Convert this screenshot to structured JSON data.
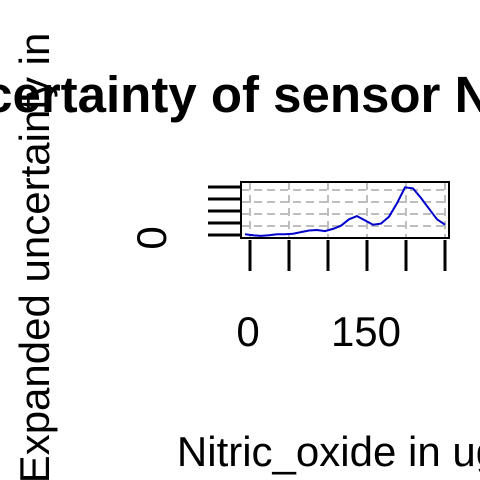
{
  "chart_data": {
    "type": "line",
    "title": "Uncertainty of sensor NOB",
    "xlabel": "Nitric_oxide in ug",
    "ylabel": "Expanded uncertainty in",
    "x_tick_labels": [
      "0",
      "150"
    ],
    "y_tick_labels": [
      "0"
    ],
    "xlim": [
      -10,
      250
    ],
    "grid": true,
    "series": [
      {
        "color": "#0000cd",
        "x": [
          -5,
          5,
          15,
          25,
          35,
          45,
          55,
          65,
          75,
          85,
          95,
          105,
          115,
          125,
          135,
          145,
          155,
          165,
          175,
          185,
          195,
          205,
          215,
          225,
          235,
          245
        ],
        "y": [
          0.02,
          0.0,
          -0.01,
          0.0,
          0.02,
          0.02,
          0.03,
          0.06,
          0.09,
          0.1,
          0.08,
          0.12,
          0.18,
          0.3,
          0.36,
          0.28,
          0.2,
          0.22,
          0.35,
          0.6,
          0.9,
          0.88,
          0.7,
          0.5,
          0.3,
          0.2
        ]
      }
    ]
  }
}
